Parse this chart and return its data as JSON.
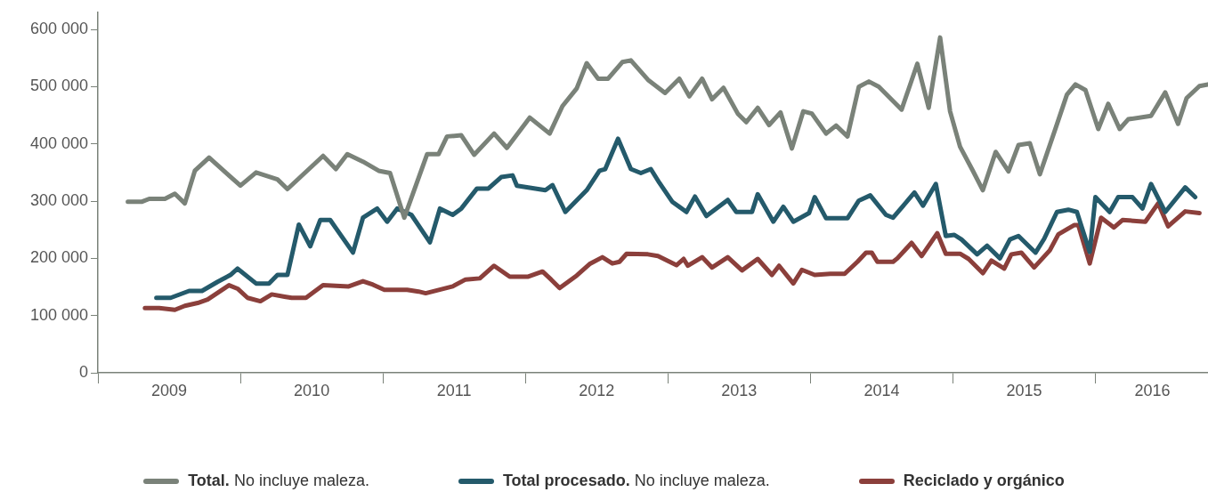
{
  "chart_data": {
    "type": "line",
    "legend": "bottom",
    "grid": false,
    "line_style": "solid",
    "xlim": [
      2009,
      2016.79
    ],
    "xticks": [
      {
        "value": 2009,
        "label": null
      },
      {
        "value": 2009.5,
        "label": "2009"
      },
      {
        "value": 2010,
        "label": null
      },
      {
        "value": 2010.5,
        "label": "2010"
      },
      {
        "value": 2011,
        "label": null
      },
      {
        "value": 2011.5,
        "label": "2011"
      },
      {
        "value": 2012,
        "label": null
      },
      {
        "value": 2012.5,
        "label": "2012"
      },
      {
        "value": 2013,
        "label": null
      },
      {
        "value": 2013.5,
        "label": "2013"
      },
      {
        "value": 2014,
        "label": null
      },
      {
        "value": 2014.5,
        "label": "2014"
      },
      {
        "value": 2015,
        "label": null
      },
      {
        "value": 2015.5,
        "label": "2015"
      },
      {
        "value": 2016,
        "label": null
      },
      {
        "value": 2016.4,
        "label": "2016"
      }
    ],
    "ylim": [
      0,
      630000
    ],
    "yticks": [
      {
        "value": 0,
        "label": "0"
      },
      {
        "value": 100000,
        "label": "100 000"
      },
      {
        "value": 200000,
        "label": "200 000"
      },
      {
        "value": 300000,
        "label": "300 000"
      },
      {
        "value": 400000,
        "label": "400 000"
      },
      {
        "value": 500000,
        "label": "500 000"
      },
      {
        "value": 600000,
        "label": "600 000"
      }
    ],
    "series": [
      {
        "name": "Total. No incluye maleza.",
        "color": "#7a8279",
        "x": [
          2009.21,
          2009.31,
          2009.36,
          2009.47,
          2009.54,
          2009.61,
          2009.68,
          2009.78,
          2010.0,
          2010.11,
          2010.26,
          2010.33,
          2010.58,
          2010.67,
          2010.75,
          2010.86,
          2010.97,
          2011.05,
          2011.15,
          2011.31,
          2011.39,
          2011.45,
          2011.55,
          2011.64,
          2011.78,
          2011.87,
          2012.03,
          2012.17,
          2012.26,
          2012.36,
          2012.43,
          2012.51,
          2012.58,
          2012.68,
          2012.74,
          2012.86,
          2012.98,
          2013.08,
          2013.15,
          2013.24,
          2013.31,
          2013.39,
          2013.49,
          2013.55,
          2013.63,
          2013.71,
          2013.79,
          2013.87,
          2013.95,
          2014.01,
          2014.11,
          2014.18,
          2014.26,
          2014.34,
          2014.41,
          2014.48,
          2014.64,
          2014.75,
          2014.83,
          2014.91,
          2014.98,
          2015.05,
          2015.14,
          2015.21,
          2015.3,
          2015.39,
          2015.46,
          2015.54,
          2015.61,
          2015.72,
          2015.8,
          2015.86,
          2015.93,
          2016.02,
          2016.09,
          2016.17,
          2016.23,
          2016.39,
          2016.49,
          2016.58,
          2016.64,
          2016.73,
          2016.79
        ],
        "values": [
          299000,
          299000,
          304000,
          304000,
          313000,
          296000,
          353000,
          376000,
          327000,
          350000,
          338000,
          321000,
          379000,
          356000,
          382000,
          369000,
          353000,
          349000,
          271000,
          382000,
          382000,
          413000,
          415000,
          381000,
          418000,
          393000,
          446000,
          418000,
          466000,
          497000,
          541000,
          514000,
          514000,
          543000,
          546000,
          512000,
          489000,
          514000,
          483000,
          514000,
          478000,
          498000,
          453000,
          438000,
          463000,
          433000,
          455000,
          392000,
          457000,
          453000,
          418000,
          432000,
          413000,
          500000,
          509000,
          500000,
          460000,
          540000,
          463000,
          586000,
          457000,
          395000,
          353000,
          319000,
          386000,
          352000,
          398000,
          401000,
          347000,
          427000,
          486000,
          504000,
          494000,
          426000,
          470000,
          426000,
          443000,
          449000,
          490000,
          435000,
          480000,
          501000,
          504000
        ]
      },
      {
        "name": "Total procesado. No incluye maleza.",
        "color": "#245a6b",
        "x": [
          2009.41,
          2009.51,
          2009.64,
          2009.73,
          2009.84,
          2009.93,
          2009.98,
          2010.11,
          2010.2,
          2010.26,
          2010.33,
          2010.41,
          2010.49,
          2010.56,
          2010.63,
          2010.79,
          2010.86,
          2010.96,
          2011.03,
          2011.1,
          2011.2,
          2011.33,
          2011.4,
          2011.49,
          2011.55,
          2011.66,
          2011.74,
          2011.83,
          2011.91,
          2011.94,
          2012.14,
          2012.19,
          2012.28,
          2012.43,
          2012.52,
          2012.56,
          2012.65,
          2012.74,
          2012.81,
          2012.88,
          2012.94,
          2013.03,
          2013.13,
          2013.19,
          2013.27,
          2013.42,
          2013.48,
          2013.59,
          2013.63,
          2013.74,
          2013.81,
          2013.88,
          2013.99,
          2014.03,
          2014.11,
          2014.26,
          2014.34,
          2014.42,
          2014.53,
          2014.58,
          2014.73,
          2014.79,
          2014.88,
          2014.95,
          2015.01,
          2015.06,
          2015.17,
          2015.24,
          2015.33,
          2015.4,
          2015.46,
          2015.58,
          2015.64,
          2015.73,
          2015.81,
          2015.87,
          2015.96,
          2016.0,
          2016.1,
          2016.16,
          2016.26,
          2016.33,
          2016.39,
          2016.49,
          2016.63,
          2016.7
        ],
        "values": [
          131000,
          131000,
          143000,
          143000,
          159000,
          171000,
          182000,
          156000,
          156000,
          171000,
          171000,
          259000,
          221000,
          267000,
          267000,
          210000,
          271000,
          287000,
          264000,
          287000,
          276000,
          228000,
          287000,
          276000,
          287000,
          322000,
          322000,
          342000,
          345000,
          327000,
          319000,
          328000,
          281000,
          319000,
          353000,
          356000,
          409000,
          356000,
          349000,
          356000,
          332000,
          299000,
          281000,
          308000,
          274000,
          302000,
          281000,
          281000,
          312000,
          264000,
          290000,
          264000,
          279000,
          307000,
          270000,
          270000,
          301000,
          310000,
          276000,
          271000,
          315000,
          292000,
          330000,
          239000,
          241000,
          233000,
          207000,
          222000,
          200000,
          233000,
          239000,
          210000,
          234000,
          281000,
          285000,
          281000,
          211000,
          307000,
          281000,
          307000,
          307000,
          287000,
          330000,
          281000,
          324000,
          307000
        ]
      },
      {
        "name": "Reciclado y orgánico",
        "color": "#8b3f3b",
        "x": [
          2009.33,
          2009.43,
          2009.54,
          2009.61,
          2009.7,
          2009.77,
          2009.92,
          2009.98,
          2010.05,
          2010.14,
          2010.22,
          2010.31,
          2010.36,
          2010.46,
          2010.58,
          2010.76,
          2010.86,
          2010.93,
          2011.01,
          2011.17,
          2011.25,
          2011.3,
          2011.49,
          2011.58,
          2011.68,
          2011.78,
          2011.89,
          2012.02,
          2012.12,
          2012.18,
          2012.24,
          2012.36,
          2012.45,
          2012.54,
          2012.61,
          2012.66,
          2012.71,
          2012.86,
          2012.93,
          2013.06,
          2013.11,
          2013.14,
          2013.24,
          2013.31,
          2013.42,
          2013.52,
          2013.63,
          2013.73,
          2013.78,
          2013.88,
          2013.94,
          2014.03,
          2014.14,
          2014.24,
          2014.33,
          2014.39,
          2014.43,
          2014.47,
          2014.58,
          2014.61,
          2014.71,
          2014.78,
          2014.89,
          2014.95,
          2015.05,
          2015.11,
          2015.21,
          2015.27,
          2015.36,
          2015.41,
          2015.48,
          2015.57,
          2015.68,
          2015.74,
          2015.85,
          2015.88,
          2015.96,
          2016.04,
          2016.13,
          2016.19,
          2016.35,
          2016.44,
          2016.51,
          2016.63,
          2016.73
        ],
        "values": [
          113000,
          113000,
          110000,
          117000,
          122000,
          128000,
          153000,
          147000,
          131000,
          125000,
          137000,
          133000,
          131000,
          131000,
          153000,
          151000,
          160000,
          154000,
          145000,
          145000,
          142000,
          139000,
          151000,
          163000,
          165000,
          187000,
          168000,
          168000,
          177000,
          163000,
          148000,
          170000,
          190000,
          202000,
          191000,
          194000,
          208000,
          207000,
          204000,
          188000,
          199000,
          187000,
          202000,
          184000,
          202000,
          179000,
          199000,
          171000,
          187000,
          156000,
          180000,
          171000,
          173000,
          173000,
          194000,
          210000,
          210000,
          194000,
          194000,
          200000,
          227000,
          204000,
          244000,
          208000,
          208000,
          199000,
          174000,
          196000,
          182000,
          207000,
          210000,
          184000,
          214000,
          242000,
          258000,
          258000,
          191000,
          271000,
          254000,
          267000,
          264000,
          296000,
          256000,
          282000,
          279000
        ]
      }
    ]
  }
}
